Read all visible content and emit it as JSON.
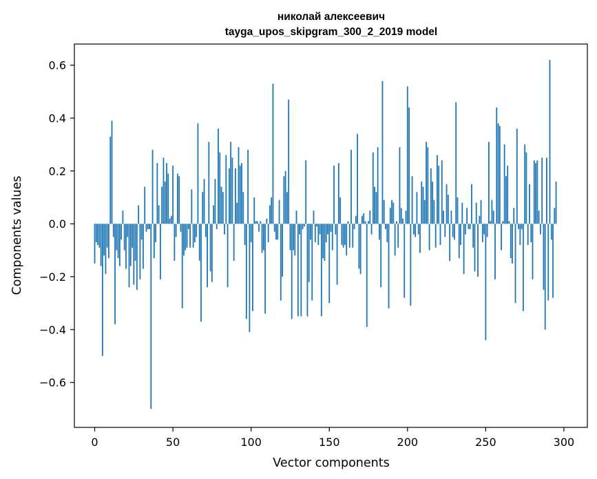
{
  "chart_data": {
    "type": "bar",
    "title_line1": "николай алексеевич",
    "title_line2": "tayga_upos_skipgram_300_2_2019 model",
    "xlabel": "Vector components",
    "ylabel": "Components values",
    "xlim": [
      -13,
      315
    ],
    "ylim": [
      -0.77,
      0.68
    ],
    "xticks": [
      0,
      50,
      100,
      150,
      200,
      250,
      300
    ],
    "xtick_labels": [
      "0",
      "50",
      "100",
      "150",
      "200",
      "250",
      "300"
    ],
    "yticks": [
      -0.6,
      -0.4,
      -0.2,
      0.0,
      0.2,
      0.4,
      0.6
    ],
    "ytick_labels": [
      "−0.6",
      "−0.4",
      "−0.2",
      "0.0",
      "0.2",
      "0.4",
      "0.6"
    ],
    "bar_color": "#1f77b4",
    "values": [
      -0.15,
      -0.07,
      -0.08,
      -0.09,
      -0.16,
      -0.5,
      -0.12,
      -0.19,
      -0.09,
      -0.13,
      0.33,
      0.39,
      -0.05,
      -0.38,
      -0.1,
      -0.13,
      -0.16,
      -0.06,
      0.05,
      -0.1,
      -0.17,
      -0.05,
      -0.24,
      -0.16,
      -0.09,
      -0.23,
      -0.14,
      -0.25,
      0.07,
      -0.21,
      -0.06,
      -0.17,
      0.14,
      -0.03,
      -0.02,
      -0.02,
      -0.7,
      0.28,
      -0.13,
      -0.07,
      0.23,
      0.07,
      -0.21,
      0.14,
      0.25,
      0.16,
      0.23,
      0.19,
      0.02,
      0.03,
      0.22,
      -0.14,
      -0.05,
      0.19,
      0.18,
      -0.03,
      -0.32,
      -0.12,
      -0.1,
      -0.09,
      -0.02,
      -0.09,
      0.13,
      -0.09,
      -0.07,
      -0.05,
      0.38,
      -0.14,
      -0.37,
      0.12,
      0.17,
      -0.05,
      -0.24,
      0.31,
      -0.18,
      -0.22,
      0.07,
      0.17,
      -0.02,
      0.36,
      0.27,
      0.14,
      0.12,
      -0.04,
      0.26,
      -0.24,
      0.21,
      0.31,
      0.25,
      -0.14,
      0.21,
      0.08,
      0.29,
      0.22,
      0.23,
      0.12,
      -0.08,
      -0.36,
      0.28,
      -0.41,
      -0.07,
      -0.33,
      0.1,
      0.01,
      0.01,
      -0.03,
      0.01,
      -0.11,
      -0.1,
      -0.34,
      0.02,
      -0.07,
      0.07,
      0.1,
      0.53,
      -0.03,
      -0.06,
      -0.06,
      0.09,
      -0.29,
      -0.2,
      0.18,
      0.2,
      0.12,
      0.47,
      -0.1,
      -0.36,
      -0.1,
      -0.12,
      0.05,
      -0.35,
      -0.04,
      -0.35,
      -0.02,
      -0.01,
      0.24,
      -0.35,
      -0.22,
      -0.06,
      -0.29,
      0.05,
      -0.07,
      -0.01,
      -0.08,
      -0.04,
      -0.35,
      -0.13,
      -0.14,
      -0.07,
      -0.04,
      -0.3,
      -0.03,
      -0.1,
      0.22,
      -0.04,
      -0.23,
      0.23,
      0.1,
      -0.08,
      -0.09,
      -0.08,
      -0.12,
      0.01,
      -0.09,
      0.28,
      -0.09,
      -0.02,
      0.03,
      0.34,
      -0.17,
      -0.19,
      0.03,
      0.04,
      0.01,
      -0.39,
      0.01,
      0.05,
      -0.04,
      0.27,
      0.14,
      0.12,
      0.29,
      -0.06,
      -0.24,
      0.54,
      0.09,
      -0.02,
      -0.07,
      -0.32,
      0.06,
      0.09,
      0.08,
      -0.12,
      0.01,
      -0.09,
      0.29,
      0.06,
      0.02,
      -0.28,
      0.05,
      0.52,
      0.44,
      -0.31,
      0.18,
      -0.04,
      -0.05,
      0.12,
      -0.04,
      -0.11,
      0.16,
      0.14,
      0.09,
      0.31,
      0.29,
      -0.1,
      0.21,
      0.16,
      0.09,
      -0.09,
      0.26,
      0.22,
      -0.08,
      0.24,
      0.05,
      -0.05,
      0.15,
      0.11,
      -0.14,
      0.05,
      -0.05,
      -0.06,
      0.46,
      0.1,
      -0.13,
      -0.08,
      0.08,
      -0.19,
      -0.04,
      0.06,
      -0.02,
      -0.02,
      0.15,
      -0.09,
      -0.18,
      0.08,
      -0.2,
      0.03,
      0.09,
      -0.07,
      -0.04,
      -0.44,
      -0.05,
      0.31,
      0.01,
      0.09,
      0.05,
      -0.21,
      0.44,
      0.38,
      0.37,
      -0.1,
      0.01,
      0.3,
      0.18,
      0.22,
      0.01,
      -0.13,
      -0.15,
      0.06,
      -0.3,
      0.36,
      -0.02,
      -0.08,
      -0.02,
      -0.33,
      0.3,
      0.27,
      -0.08,
      0.15,
      -0.07,
      -0.21,
      0.24,
      0.23,
      0.24,
      0.05,
      -0.04,
      0.25,
      -0.25,
      -0.4,
      0.25,
      -0.29,
      0.62,
      -0.06,
      -0.28,
      0.06,
      0.16
    ]
  }
}
